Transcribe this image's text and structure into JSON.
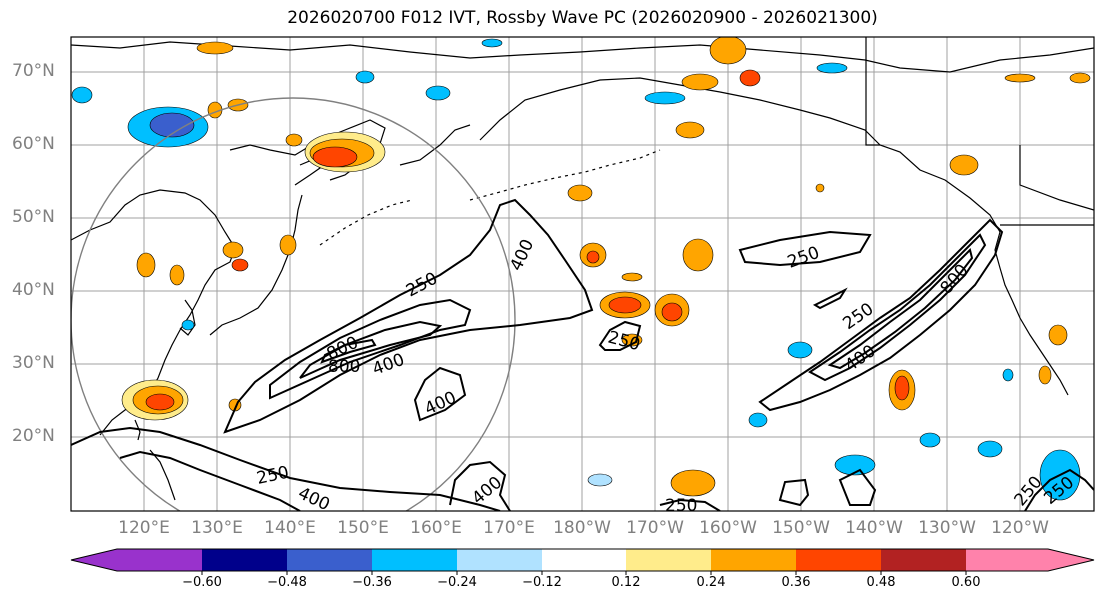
{
  "title": "2026020700 F012 IVT, Rossby Wave PC (2026020900 - 2026021300)",
  "lat_labels": [
    "70°N",
    "60°N",
    "50°N",
    "40°N",
    "30°N",
    "20°N"
  ],
  "lon_labels": [
    "120°E",
    "130°E",
    "140°E",
    "150°E",
    "160°E",
    "170°E",
    "180°W",
    "170°W",
    "160°W",
    "150°W",
    "140°W",
    "130°W",
    "120°W"
  ],
  "colorbar": {
    "tick_labels": [
      "−0.60",
      "−0.48",
      "−0.36",
      "−0.24",
      "−0.12",
      "0.12",
      "0.24",
      "0.36",
      "0.48",
      "0.60"
    ],
    "colors": [
      "#9932cc",
      "#00008b",
      "#3a5fcd",
      "#00bfff",
      "#b0e2ff",
      "#ffffff",
      "#ffec8b",
      "#ffa500",
      "#ff4500",
      "#b22222",
      "#ff82ab"
    ]
  },
  "contour_labels": [
    "250",
    "400",
    "800",
    "800",
    "400",
    "400",
    "250",
    "400",
    "250",
    "400",
    "250",
    "250",
    "250",
    "400",
    "800",
    "250",
    "250"
  ],
  "colors": {
    "gridline": "#a0a0a0",
    "coast": "#000000",
    "circle": "#808080",
    "label": "#808080"
  }
}
